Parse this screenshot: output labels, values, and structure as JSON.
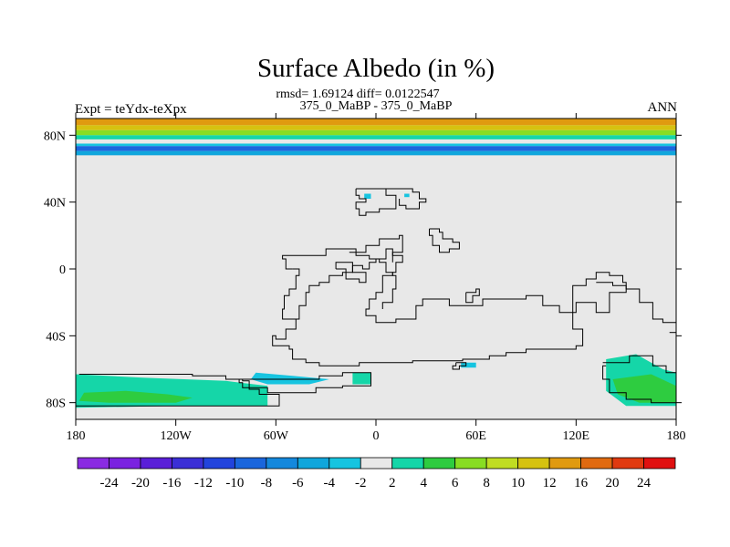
{
  "chart_data": {
    "type": "heatmap",
    "title": "Surface Albedo (in %)",
    "stats": "rmsd= 1.69124 diff= 0.0122547",
    "subtitle": "375_0_MaBP - 375_0_MaBP",
    "left_label": "Expt = teYdx-teXpx",
    "right_label": "ANN",
    "projection": "cylindrical equidistant",
    "xlim": [
      -180,
      180
    ],
    "ylim": [
      -90,
      90
    ],
    "x_ticks": [
      {
        "value": -180,
        "label": "180"
      },
      {
        "value": -120,
        "label": "120W"
      },
      {
        "value": -60,
        "label": "60W"
      },
      {
        "value": 0,
        "label": "0"
      },
      {
        "value": 60,
        "label": "60E"
      },
      {
        "value": 120,
        "label": "120E"
      },
      {
        "value": 180,
        "label": "180"
      }
    ],
    "y_ticks": [
      {
        "value": 80,
        "label": "80N"
      },
      {
        "value": 40,
        "label": "40N"
      },
      {
        "value": 0,
        "label": "0"
      },
      {
        "value": -40,
        "label": "40S"
      },
      {
        "value": -80,
        "label": "80S"
      }
    ],
    "colorbar": {
      "labels": [
        "-24",
        "-20",
        "-16",
        "-12",
        "-10",
        "-8",
        "-6",
        "-4",
        "-2",
        "2",
        "4",
        "6",
        "8",
        "10",
        "12",
        "16",
        "20",
        "24"
      ],
      "colors": [
        "#8a2be2",
        "#7a22e0",
        "#5a1fd8",
        "#3b2fd6",
        "#2244dd",
        "#1a66dd",
        "#1488dd",
        "#10a6dc",
        "#16c4e0",
        "#e8e8e8",
        "#15d6a8",
        "#2ecc40",
        "#88dd22",
        "#c0dd22",
        "#d6c210",
        "#e09a10",
        "#e06a10",
        "#e03a10",
        "#e01010"
      ]
    },
    "background_color": "#e8e8e8",
    "lat_bands": [
      {
        "lat": [
          86,
          90
        ],
        "color": "#e09a10"
      },
      {
        "lat": [
          83,
          86
        ],
        "color": "#d6c210"
      },
      {
        "lat": [
          80,
          83
        ],
        "color": "#88dd22"
      },
      {
        "lat": [
          77.5,
          80
        ],
        "color": "#15d6a8"
      },
      {
        "lat": [
          75,
          77.5
        ],
        "color": "#e8e8e8"
      },
      {
        "lat": [
          73.5,
          75
        ],
        "color": "#16c4e0"
      },
      {
        "lat": [
          70.5,
          73.5
        ],
        "color": "#1a66dd"
      },
      {
        "lat": [
          68,
          70.5
        ],
        "color": "#10a6dc"
      }
    ],
    "regions": [
      {
        "color": "#15d6a8",
        "points": [
          [
            -180,
            -63
          ],
          [
            -140,
            -65
          ],
          [
            -90,
            -67
          ],
          [
            -65,
            -70
          ],
          [
            -65,
            -82
          ],
          [
            -120,
            -82
          ],
          [
            -180,
            -83
          ]
        ]
      },
      {
        "color": "#2ecc40",
        "points": [
          [
            -175,
            -74
          ],
          [
            -150,
            -73
          ],
          [
            -125,
            -75
          ],
          [
            -110,
            -77
          ],
          [
            -120,
            -80
          ],
          [
            -160,
            -80
          ],
          [
            -178,
            -79
          ]
        ]
      },
      {
        "color": "#16c4e0",
        "points": [
          [
            -72,
            -62
          ],
          [
            -50,
            -64
          ],
          [
            -28,
            -66
          ],
          [
            -40,
            -69
          ],
          [
            -65,
            -69
          ],
          [
            -75,
            -66
          ]
        ]
      },
      {
        "color": "#15d6a8",
        "points": [
          [
            -14,
            -62
          ],
          [
            -3,
            -62
          ],
          [
            -3,
            -69
          ],
          [
            -14,
            -69
          ]
        ]
      },
      {
        "color": "#16c4e0",
        "points": [
          [
            51,
            -56
          ],
          [
            60,
            -56
          ],
          [
            60,
            -59
          ],
          [
            51,
            -59
          ]
        ]
      },
      {
        "color": "#15d6a8",
        "points": [
          [
            138,
            -54
          ],
          [
            156,
            -51
          ],
          [
            172,
            -60
          ],
          [
            180,
            -62
          ],
          [
            180,
            -82
          ],
          [
            150,
            -82
          ],
          [
            138,
            -73
          ]
        ]
      },
      {
        "color": "#2ecc40",
        "points": [
          [
            142,
            -66
          ],
          [
            165,
            -63
          ],
          [
            180,
            -70
          ],
          [
            180,
            -80
          ],
          [
            158,
            -80
          ],
          [
            145,
            -75
          ]
        ]
      },
      {
        "color": "#16c4e0",
        "points": [
          [
            -7,
            45
          ],
          [
            -3,
            45
          ],
          [
            -3,
            42
          ],
          [
            -7,
            42
          ]
        ]
      },
      {
        "color": "#16c4e0",
        "points": [
          [
            17,
            45
          ],
          [
            20,
            45
          ],
          [
            20,
            43
          ],
          [
            17,
            43
          ]
        ]
      }
    ],
    "coastlines": [
      [
        [
          -178,
          -63
        ],
        [
          -140,
          -63
        ],
        [
          -110,
          -64
        ],
        [
          -90,
          -66
        ],
        [
          -80,
          -67
        ],
        [
          -76,
          -72
        ],
        [
          -70,
          -75
        ],
        [
          -58,
          -78
        ],
        [
          -58,
          -82
        ],
        [
          -110,
          -82
        ],
        [
          -150,
          -82
        ],
        [
          -180,
          -82
        ]
      ],
      [
        [
          -82,
          -66
        ],
        [
          -58,
          -66
        ],
        [
          -42,
          -66
        ],
        [
          -34,
          -64
        ],
        [
          -20,
          -62
        ],
        [
          -3,
          -62
        ],
        [
          -3,
          -70
        ],
        [
          -20,
          -71
        ],
        [
          -36,
          -74
        ],
        [
          -52,
          -74
        ],
        [
          -65,
          -71
        ],
        [
          -80,
          -68
        ],
        [
          -82,
          -66
        ]
      ],
      [
        [
          -50,
          0
        ],
        [
          -46,
          -4
        ],
        [
          -48,
          -12
        ],
        [
          -52,
          -16
        ],
        [
          -55,
          -24
        ],
        [
          -56,
          -30
        ],
        [
          -50,
          -30
        ],
        [
          -48,
          -36
        ],
        [
          -54,
          -42
        ],
        [
          -60,
          -40
        ],
        [
          -62,
          -46
        ],
        [
          -52,
          -48
        ],
        [
          -50,
          -54
        ],
        [
          -42,
          -56
        ],
        [
          -34,
          -58
        ],
        [
          -20,
          -58
        ],
        [
          -10,
          -56
        ],
        [
          10,
          -56
        ],
        [
          22,
          -55
        ],
        [
          36,
          -55
        ],
        [
          48,
          -55
        ],
        [
          52,
          -54
        ],
        [
          62,
          -54
        ],
        [
          68,
          -52
        ],
        [
          78,
          -50
        ],
        [
          90,
          -48
        ],
        [
          105,
          -48
        ],
        [
          120,
          -46
        ],
        [
          124,
          -46
        ],
        [
          124,
          -36
        ],
        [
          118,
          -26
        ],
        [
          118,
          -10
        ],
        [
          126,
          -6
        ],
        [
          132,
          -2
        ],
        [
          140,
          -4
        ],
        [
          148,
          -8
        ],
        [
          150,
          -14
        ],
        [
          140,
          -18
        ],
        [
          140,
          -26
        ],
        [
          132,
          -20
        ],
        [
          126,
          -20
        ],
        [
          120,
          -26
        ],
        [
          110,
          -22
        ],
        [
          100,
          -16
        ],
        [
          90,
          -18
        ],
        [
          76,
          -18
        ],
        [
          64,
          -22
        ],
        [
          54,
          -22
        ],
        [
          44,
          -18
        ],
        [
          34,
          -18
        ],
        [
          28,
          -22
        ],
        [
          24,
          -30
        ],
        [
          12,
          -32
        ],
        [
          4,
          -32
        ],
        [
          0,
          -28
        ],
        [
          -6,
          -24
        ],
        [
          -4,
          -18
        ],
        [
          0,
          -14
        ],
        [
          4,
          -4
        ],
        [
          10,
          -2
        ],
        [
          12,
          4
        ],
        [
          16,
          8
        ],
        [
          10,
          12
        ],
        [
          6,
          6
        ],
        [
          0,
          4
        ],
        [
          -4,
          0
        ],
        [
          -8,
          2
        ],
        [
          -14,
          -2
        ],
        [
          -20,
          -4
        ],
        [
          -28,
          -8
        ],
        [
          -34,
          -10
        ],
        [
          -40,
          -14
        ],
        [
          -42,
          -22
        ],
        [
          -46,
          -30
        ],
        [
          -48,
          -36
        ],
        [
          -54,
          -42
        ]
      ],
      [
        [
          -24,
          0
        ],
        [
          -18,
          -6
        ],
        [
          -10,
          -8
        ],
        [
          -6,
          -2
        ],
        [
          -14,
          4
        ],
        [
          -24,
          0
        ]
      ],
      [
        [
          -50,
          0
        ],
        [
          -54,
          6
        ],
        [
          -56,
          8
        ],
        [
          -30,
          12
        ],
        [
          -12,
          8
        ],
        [
          -4,
          6
        ],
        [
          2,
          4
        ],
        [
          6,
          -2
        ],
        [
          10,
          -4
        ],
        [
          12,
          -12
        ],
        [
          10,
          -20
        ],
        [
          4,
          -24
        ]
      ],
      [
        [
          -16,
          10
        ],
        [
          -6,
          14
        ],
        [
          2,
          18
        ],
        [
          10,
          18
        ],
        [
          14,
          20
        ],
        [
          16,
          10
        ],
        [
          10,
          4
        ]
      ],
      [
        [
          -12,
          48
        ],
        [
          2,
          48
        ],
        [
          6,
          44
        ],
        [
          12,
          42
        ],
        [
          12,
          36
        ],
        [
          2,
          34
        ],
        [
          -6,
          32
        ],
        [
          -10,
          36
        ],
        [
          -12,
          40
        ],
        [
          -6,
          42
        ],
        [
          -10,
          44
        ],
        [
          -12,
          48
        ]
      ],
      [
        [
          0,
          48
        ],
        [
          14,
          48
        ],
        [
          22,
          46
        ],
        [
          26,
          42
        ],
        [
          30,
          40
        ],
        [
          26,
          36
        ],
        [
          18,
          38
        ],
        [
          14,
          42
        ]
      ],
      [
        [
          32,
          24
        ],
        [
          38,
          22
        ],
        [
          40,
          18
        ],
        [
          46,
          16
        ],
        [
          50,
          12
        ],
        [
          44,
          10
        ],
        [
          38,
          14
        ],
        [
          34,
          20
        ],
        [
          32,
          24
        ]
      ],
      [
        [
          54,
          -14
        ],
        [
          60,
          -12
        ],
        [
          62,
          -16
        ],
        [
          58,
          -20
        ],
        [
          54,
          -16
        ],
        [
          54,
          -14
        ]
      ],
      [
        [
          132,
          -8
        ],
        [
          142,
          -10
        ],
        [
          150,
          -12
        ],
        [
          158,
          -20
        ],
        [
          166,
          -30
        ],
        [
          172,
          -32
        ],
        [
          180,
          -32
        ]
      ],
      [
        [
          176,
          -38
        ],
        [
          180,
          -38
        ]
      ],
      [
        [
          48,
          -56
        ],
        [
          52,
          -56
        ],
        [
          54,
          -58
        ],
        [
          50,
          -60
        ],
        [
          46,
          -58
        ],
        [
          48,
          -56
        ]
      ],
      [
        [
          136,
          -56
        ],
        [
          152,
          -52
        ],
        [
          166,
          -58
        ],
        [
          174,
          -62
        ],
        [
          180,
          -64
        ]
      ],
      [
        [
          138,
          -58
        ],
        [
          136,
          -66
        ],
        [
          140,
          -74
        ],
        [
          150,
          -78
        ],
        [
          165,
          -80
        ],
        [
          180,
          -82
        ]
      ]
    ]
  }
}
